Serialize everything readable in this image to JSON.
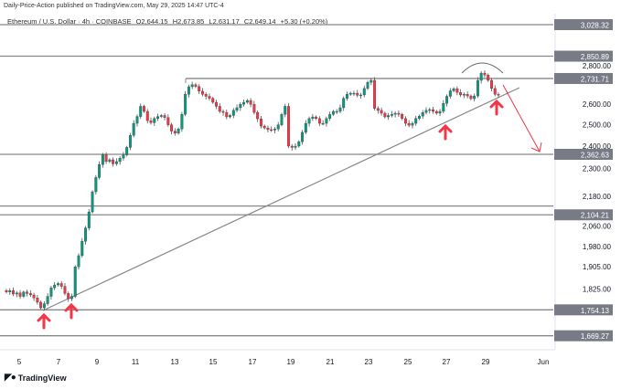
{
  "header": {
    "published": "Daily-Price-Action published on TradingView.com, May 29, 2025 14:47 UTC-4",
    "symbol": "Ethereum / U.S. Dollar · 4h · COINBASE",
    "open": "O2,644.15",
    "high": "H2,673.85",
    "low": "L2,631.17",
    "close": "C2,649.14",
    "change": "+5.30 (+0.20%)"
  },
  "logo": {
    "text": "TradingView"
  },
  "colors": {
    "up": "#089981",
    "down": "#f23645",
    "level": "#888888",
    "label_bg": "#787b86",
    "annotation": "#f23645"
  },
  "chart_data": {
    "type": "candlestick",
    "interval": "4h",
    "y_scale": "log",
    "ylim": [
      1669.27,
      3028.32
    ],
    "closes": [
      1815,
      1820,
      1808,
      1812,
      1800,
      1815,
      1810,
      1805,
      1795,
      1780,
      1761,
      1775,
      1800,
      1830,
      1840,
      1845,
      1835,
      1810,
      1792,
      1800,
      1905,
      1946,
      2000,
      2052,
      2116,
      2199,
      2260,
      2317,
      2360,
      2330,
      2338,
      2320,
      2330,
      2345,
      2360,
      2394,
      2450,
      2507,
      2540,
      2590,
      2565,
      2520,
      2510,
      2530,
      2540,
      2545,
      2535,
      2500,
      2470,
      2460,
      2480,
      2551,
      2650,
      2689,
      2700,
      2690,
      2666,
      2650,
      2640,
      2630,
      2610,
      2590,
      2565,
      2560,
      2538,
      2545,
      2570,
      2583,
      2600,
      2610,
      2619,
      2600,
      2560,
      2529,
      2494,
      2485,
      2477,
      2475,
      2480,
      2500,
      2550,
      2590,
      2400,
      2394,
      2400,
      2420,
      2464,
      2507,
      2530,
      2538,
      2530,
      2507,
      2507,
      2530,
      2550,
      2565,
      2565,
      2583,
      2630,
      2650,
      2656,
      2656,
      2645,
      2647,
      2680,
      2712,
      2722,
      2580,
      2570,
      2556,
      2538,
      2545,
      2551,
      2556,
      2550,
      2530,
      2507,
      2498,
      2507,
      2530,
      2542,
      2560,
      2570,
      2574,
      2565,
      2556,
      2565,
      2605,
      2640,
      2668,
      2679,
      2660,
      2647,
      2650,
      2642,
      2628,
      2642,
      2722,
      2760,
      2750,
      2722,
      2680,
      2650,
      2649
    ],
    "y_ticks": [
      "2,800.00",
      "2,600.00",
      "2,500.00",
      "2,400.00",
      "2,300.00",
      "2,180.00",
      "2,060.00",
      "1,980.00",
      "1,905.00",
      "1,825.00"
    ],
    "y_tick_values": [
      2800,
      2600,
      2500,
      2400,
      2300,
      2180,
      2060,
      1980,
      1905,
      1825
    ],
    "x_ticks": [
      "5",
      "7",
      "9",
      "11",
      "13",
      "15",
      "17",
      "19",
      "21",
      "23",
      "25",
      "27",
      "29",
      "Jun"
    ],
    "levels": [
      {
        "value": 3028.32,
        "label": "3,028.32"
      },
      {
        "value": 2850.89,
        "label": "2,850.89"
      },
      {
        "value": 2731.71,
        "label": "2,731.71"
      },
      {
        "value": 2362.63,
        "label": "2,362.63"
      },
      {
        "value": 2140,
        "label": ""
      },
      {
        "value": 2104.21,
        "label": "2,104.21"
      },
      {
        "value": 1754.13,
        "label": "1,754.13"
      },
      {
        "value": 1669.27,
        "label": "1,669.27"
      }
    ],
    "annotations": [
      "ascending trendline",
      "rounded top arc",
      "4 red up arrows at trendline touches",
      "red down arrow projection toward 2,362.63"
    ]
  }
}
